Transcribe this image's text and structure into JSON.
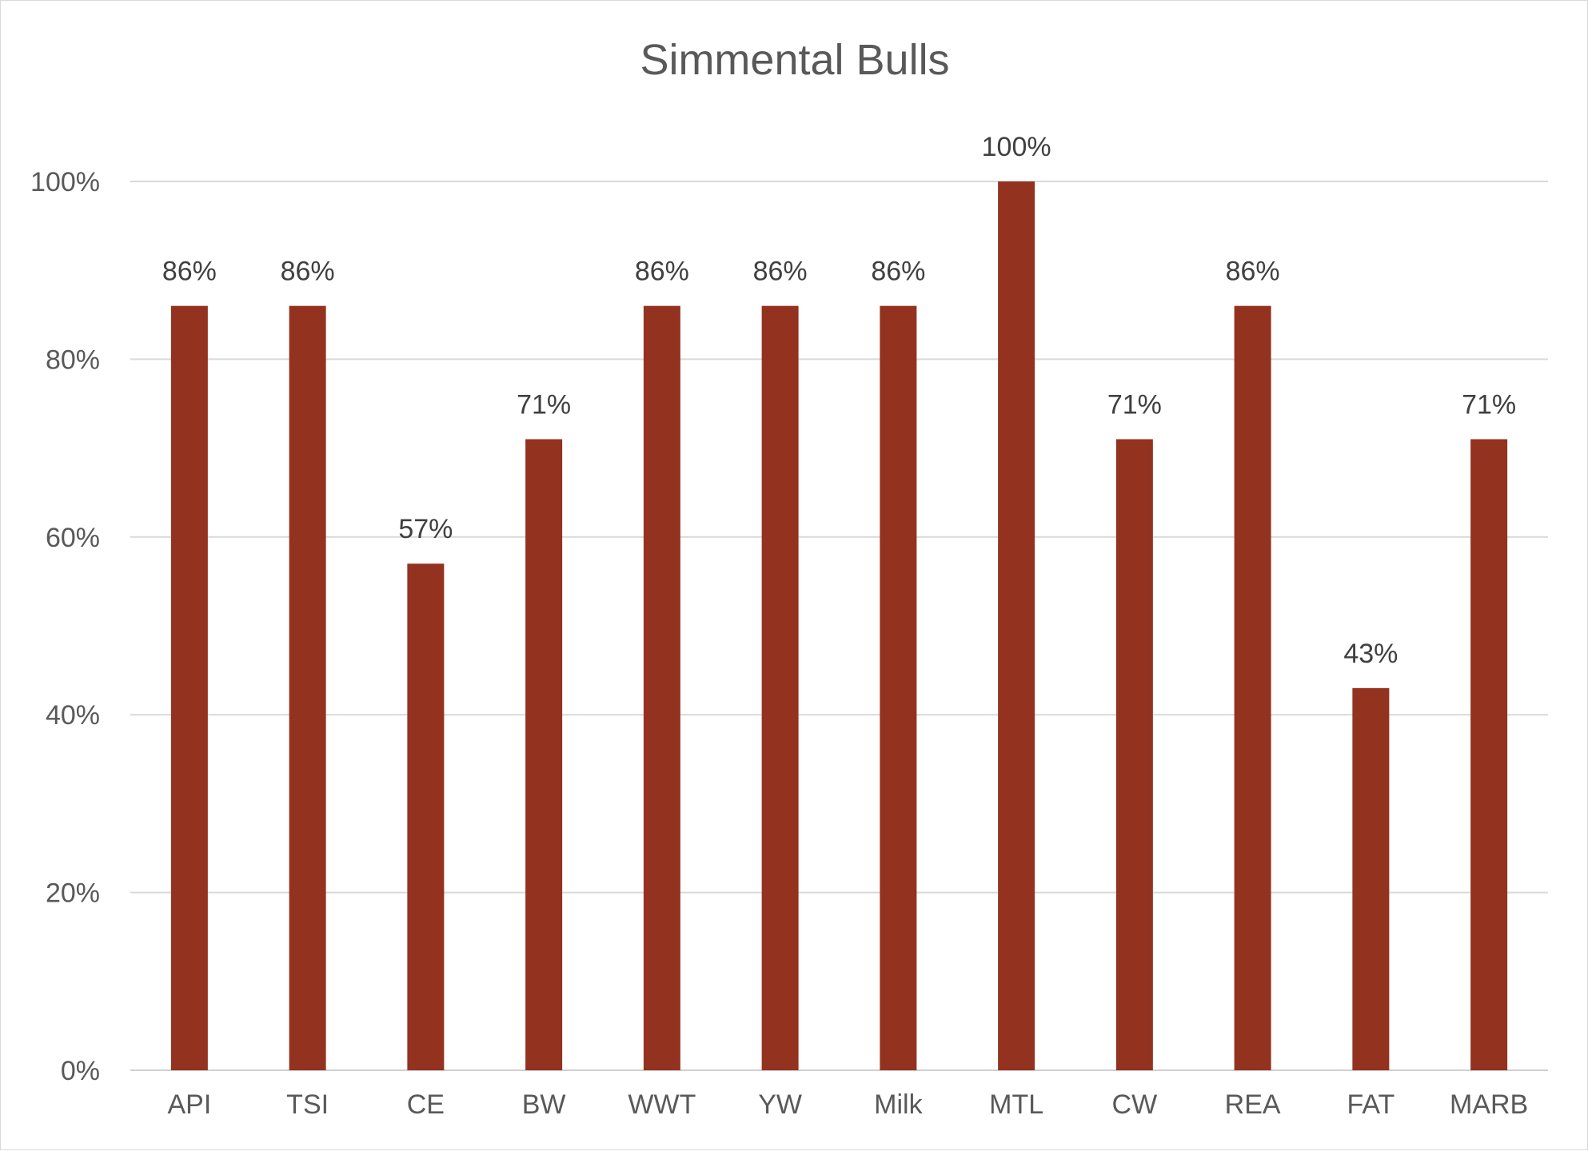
{
  "chart_data": {
    "type": "bar",
    "title": "Simmental Bulls",
    "xlabel": "",
    "ylabel": "",
    "categories": [
      "API",
      "TSI",
      "CE",
      "BW",
      "WWT",
      "YW",
      "Milk",
      "MTL",
      "CW",
      "REA",
      "FAT",
      "MARB"
    ],
    "values": [
      86,
      86,
      57,
      71,
      86,
      86,
      86,
      100,
      71,
      86,
      43,
      71
    ],
    "data_labels": [
      "86%",
      "86%",
      "57%",
      "71%",
      "86%",
      "86%",
      "86%",
      "100%",
      "71%",
      "86%",
      "43%",
      "71%"
    ],
    "y_ticks": [
      0,
      20,
      40,
      60,
      80,
      100
    ],
    "y_tick_labels": [
      "0%",
      "20%",
      "40%",
      "60%",
      "80%",
      "100%"
    ],
    "ylim": [
      0,
      100
    ],
    "grid": true,
    "legend": "none",
    "bar_color": "#943220"
  }
}
